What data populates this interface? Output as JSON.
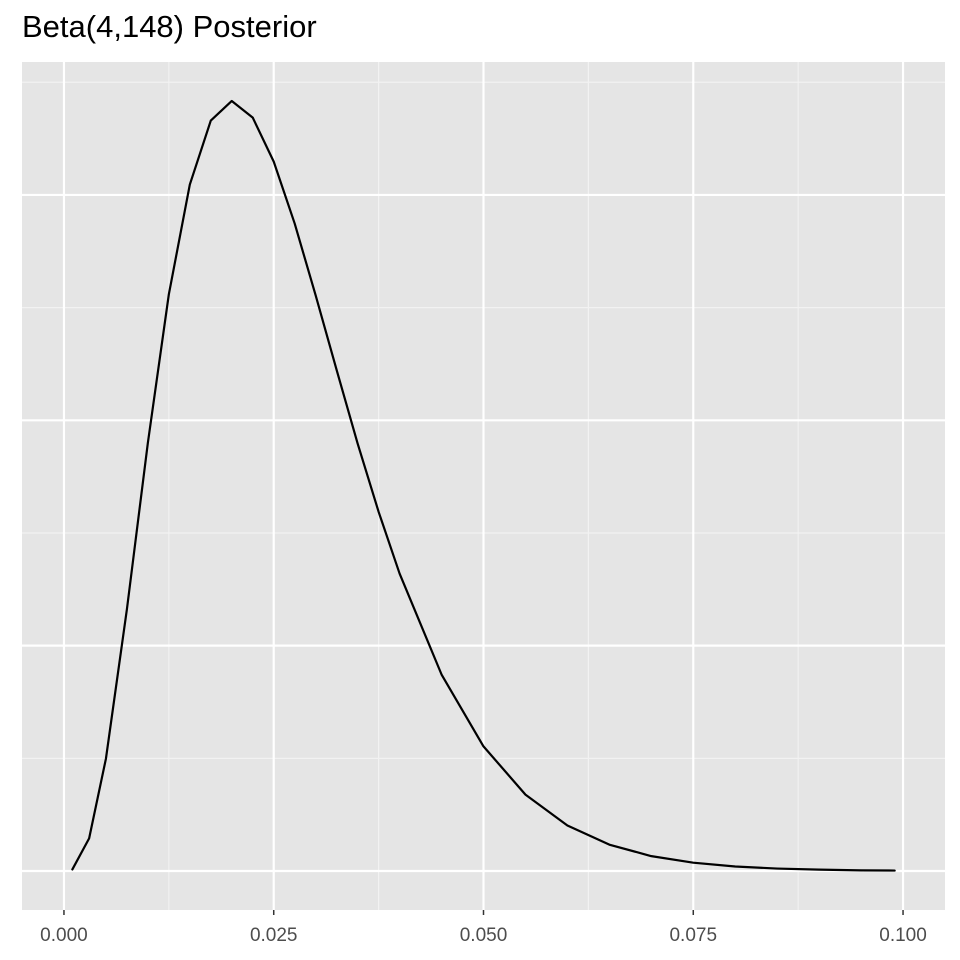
{
  "chart_data": {
    "type": "line",
    "title": "Beta(4,148) Posterior",
    "x": [
      0.001,
      0.003,
      0.005,
      0.0075,
      0.01,
      0.0125,
      0.015,
      0.0175,
      0.02,
      0.0225,
      0.025,
      0.0275,
      0.03,
      0.0325,
      0.035,
      0.0375,
      0.04,
      0.045,
      0.05,
      0.055,
      0.06,
      0.065,
      0.07,
      0.075,
      0.08,
      0.085,
      0.09,
      0.095,
      0.099
    ],
    "series": [
      {
        "color": "#000000",
        "values": [
          0.07,
          1.45,
          4.98,
          11.61,
          19.0,
          25.59,
          30.46,
          33.3,
          34.17,
          33.43,
          31.48,
          28.73,
          25.54,
          22.23,
          18.97,
          15.94,
          13.2,
          8.72,
          5.53,
          3.39,
          2.02,
          1.17,
          0.66,
          0.37,
          0.2,
          0.11,
          0.06,
          0.03,
          0.02
        ]
      }
    ],
    "xlim": [
      -0.005,
      0.105
    ],
    "xticks": [
      {
        "value": 0,
        "label": "0.000"
      },
      {
        "value": 0.025,
        "label": "0.025"
      },
      {
        "value": 0.05,
        "label": "0.050"
      },
      {
        "value": 0.075,
        "label": "0.075"
      },
      {
        "value": 0.1,
        "label": "0.100"
      }
    ],
    "ylim": [
      -1.73,
      35.9
    ],
    "yticks": [
      0,
      10,
      20,
      30
    ],
    "grid": true
  }
}
